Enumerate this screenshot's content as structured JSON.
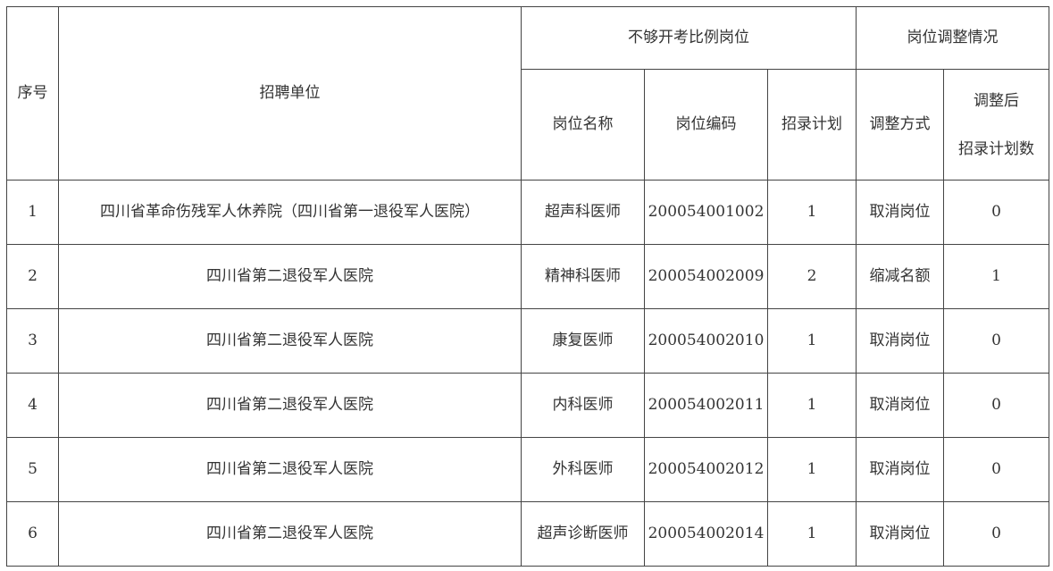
{
  "headers": {
    "seq": "序号",
    "unit": "招聘单位",
    "group_insufficient": "不够开考比例岗位",
    "group_adjust": "岗位调整情况",
    "post_name": "岗位名称",
    "post_code": "岗位编码",
    "plan": "招录计划",
    "adjust_method": "调整方式",
    "adjusted_plan_line1": "调整后",
    "adjusted_plan_line2": "招录计划数"
  },
  "rows": [
    {
      "seq": "1",
      "unit": "四川省革命伤残军人休养院（四川省第一退役军人医院）",
      "post_name": "超声科医师",
      "post_code": "200054001002",
      "plan": "1",
      "method": "取消岗位",
      "after": "0"
    },
    {
      "seq": "2",
      "unit": "四川省第二退役军人医院",
      "post_name": "精神科医师",
      "post_code": "200054002009",
      "plan": "2",
      "method": "缩减名额",
      "after": "1"
    },
    {
      "seq": "3",
      "unit": "四川省第二退役军人医院",
      "post_name": "康复医师",
      "post_code": "200054002010",
      "plan": "1",
      "method": "取消岗位",
      "after": "0"
    },
    {
      "seq": "4",
      "unit": "四川省第二退役军人医院",
      "post_name": "内科医师",
      "post_code": "200054002011",
      "plan": "1",
      "method": "取消岗位",
      "after": "0"
    },
    {
      "seq": "5",
      "unit": "四川省第二退役军人医院",
      "post_name": "外科医师",
      "post_code": "200054002012",
      "plan": "1",
      "method": "取消岗位",
      "after": "0"
    },
    {
      "seq": "6",
      "unit": "四川省第二退役军人医院",
      "post_name": "超声诊断医师",
      "post_code": "200054002014",
      "plan": "1",
      "method": "取消岗位",
      "after": "0"
    }
  ]
}
